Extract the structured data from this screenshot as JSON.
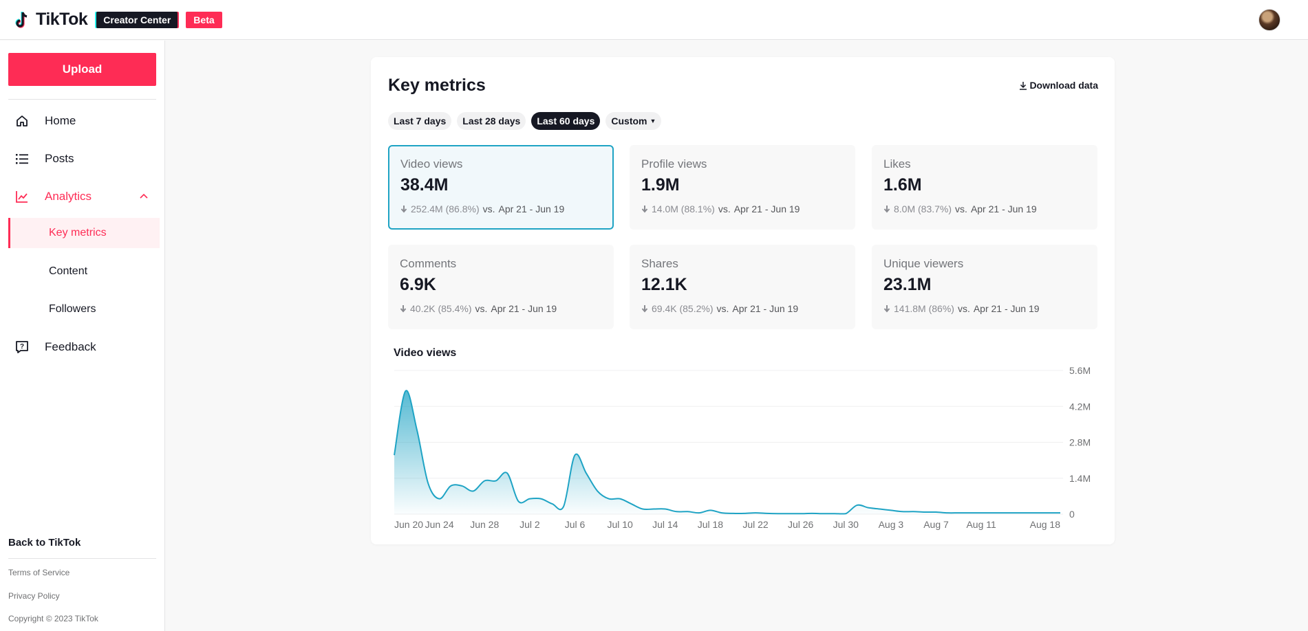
{
  "header": {
    "logo_text": "TikTok",
    "creator_center": "Creator Center",
    "beta": "Beta"
  },
  "sidebar": {
    "upload": "Upload",
    "nav": {
      "home": "Home",
      "posts": "Posts",
      "analytics": "Analytics",
      "key_metrics": "Key metrics",
      "content": "Content",
      "followers": "Followers",
      "feedback": "Feedback"
    },
    "back": "Back to TikTok",
    "terms": "Terms of Service",
    "privacy": "Privacy Policy",
    "copyright": "Copyright © 2023 TikTok"
  },
  "main": {
    "title": "Key metrics",
    "download": "Download data",
    "ranges": [
      "Last 7 days",
      "Last 28 days",
      "Last 60 days",
      "Custom"
    ],
    "selected_range": "Last 60 days",
    "metrics": [
      {
        "label": "Video views",
        "value": "38.4M",
        "change": "252.4M (86.8%)",
        "vs": "vs.",
        "period": "Apr 21 - Jun 19",
        "selected": true
      },
      {
        "label": "Profile views",
        "value": "1.9M",
        "change": "14.0M (88.1%)",
        "vs": "vs.",
        "period": "Apr 21 - Jun 19"
      },
      {
        "label": "Likes",
        "value": "1.6M",
        "change": "8.0M (83.7%)",
        "vs": "vs.",
        "period": "Apr 21 - Jun 19"
      },
      {
        "label": "Comments",
        "value": "6.9K",
        "change": "40.2K (85.4%)",
        "vs": "vs.",
        "period": "Apr 21 - Jun 19"
      },
      {
        "label": "Shares",
        "value": "12.1K",
        "change": "69.4K (85.2%)",
        "vs": "vs.",
        "period": "Apr 21 - Jun 19"
      },
      {
        "label": "Unique viewers",
        "value": "23.1M",
        "change": "141.8M (86%)",
        "vs": "vs.",
        "period": "Apr 21 - Jun 19"
      }
    ]
  },
  "colors": {
    "brand": "#fe2c55",
    "chart_line": "#1ea3c4",
    "dark": "#161823"
  },
  "chart_data": {
    "type": "area",
    "title": "Video views",
    "x_tick_labels": [
      "Jun 20",
      "Jun 24",
      "Jun 28",
      "Jul 2",
      "Jul 6",
      "Jul 10",
      "Jul 14",
      "Jul 18",
      "Jul 22",
      "Jul 26",
      "Jul 30",
      "Aug 3",
      "Aug 7",
      "Aug 11",
      "Aug 18"
    ],
    "y_tick_labels": [
      "0",
      "1.4M",
      "2.8M",
      "4.2M",
      "5.6M"
    ],
    "ylim": [
      0,
      5600000
    ],
    "grid": true,
    "y_axis_side": "right",
    "series": [
      {
        "x": [
          "Jun 20",
          "Jun 21",
          "Jun 22",
          "Jun 23",
          "Jun 24",
          "Jun 25",
          "Jun 26",
          "Jun 27",
          "Jun 28",
          "Jun 29",
          "Jun 30",
          "Jul 1",
          "Jul 2",
          "Jul 3",
          "Jul 4",
          "Jul 5",
          "Jul 6",
          "Jul 7",
          "Jul 8",
          "Jul 9",
          "Jul 10",
          "Jul 11",
          "Jul 12",
          "Jul 13",
          "Jul 14",
          "Jul 15",
          "Jul 16",
          "Jul 17",
          "Jul 18",
          "Jul 19",
          "Jul 20",
          "Jul 21",
          "Jul 22",
          "Jul 23",
          "Jul 24",
          "Jul 25",
          "Jul 26",
          "Jul 27",
          "Jul 28",
          "Jul 29",
          "Jul 30",
          "Jul 31",
          "Aug 1",
          "Aug 2",
          "Aug 3",
          "Aug 4",
          "Aug 5",
          "Aug 6",
          "Aug 7",
          "Aug 8",
          "Aug 9",
          "Aug 10",
          "Aug 11",
          "Aug 12",
          "Aug 13",
          "Aug 14",
          "Aug 15",
          "Aug 16",
          "Aug 17",
          "Aug 18"
        ],
        "values": [
          2300000,
          4800000,
          3300000,
          1200000,
          600000,
          1100000,
          1100000,
          900000,
          1300000,
          1300000,
          1600000,
          500000,
          600000,
          600000,
          400000,
          300000,
          2300000,
          1600000,
          900000,
          600000,
          600000,
          400000,
          200000,
          200000,
          200000,
          100000,
          100000,
          50000,
          150000,
          50000,
          30000,
          30000,
          50000,
          30000,
          20000,
          20000,
          20000,
          30000,
          20000,
          20000,
          20000,
          350000,
          250000,
          200000,
          150000,
          100000,
          100000,
          80000,
          80000,
          50000,
          50000,
          50000,
          50000,
          50000,
          50000,
          50000,
          50000,
          50000,
          50000,
          50000
        ]
      }
    ]
  }
}
